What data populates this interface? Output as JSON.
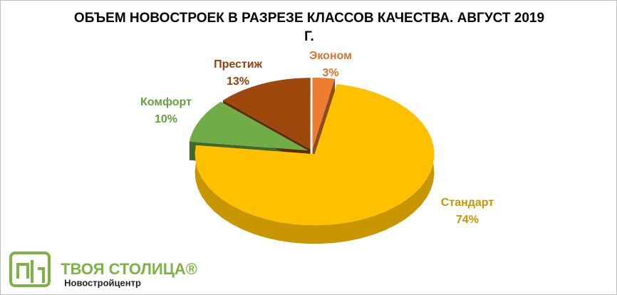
{
  "chart_data": {
    "type": "pie3d",
    "title": "ОБЪЕМ НОВОСТРОЕК В РАЗРЕЗЕ КЛАССОВ КАЧЕСТВА. АВГУСТ 2019 Г.",
    "categories": [
      "Эконом",
      "Стандарт",
      "Комфорт",
      "Престиж"
    ],
    "values": [
      3,
      74,
      10,
      13
    ],
    "value_labels": [
      "3%",
      "74%",
      "10%",
      "13%"
    ],
    "colors": [
      "#ED7D31",
      "#FFC000",
      "#70AD47",
      "#9E480E"
    ]
  },
  "logo": {
    "name": "ТВОЯ СТОЛИЦА®",
    "subtitle": "Новостройцентр"
  }
}
